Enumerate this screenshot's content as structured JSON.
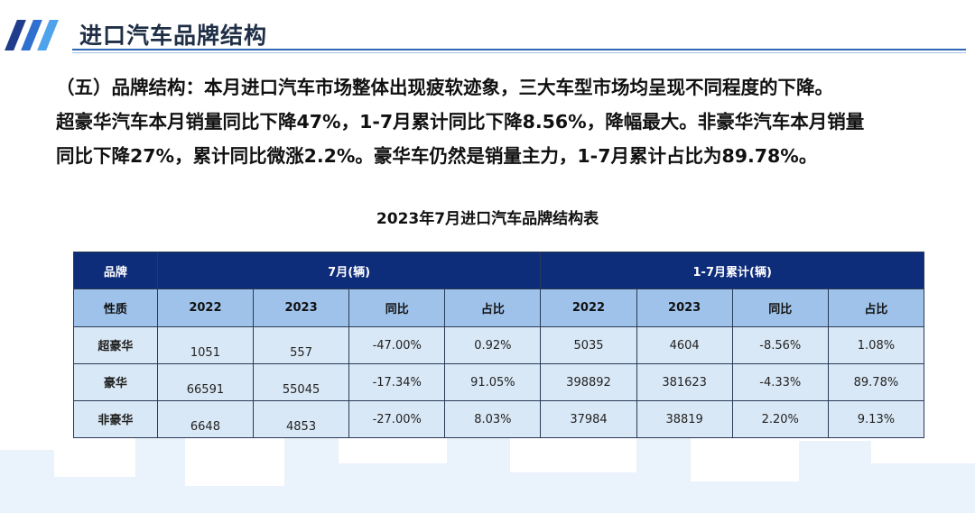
{
  "header": {
    "title": "进口汽车品牌结构",
    "stripe_colors": [
      "#1f3d8a",
      "#2f6fd0",
      "#4fa3ea"
    ]
  },
  "paragraph": {
    "line1": "（五）品牌结构：本月进口汽车市场整体出现疲软迹象，三大车型市场均呈现不同程度的下降。",
    "line2": "超豪华汽车本月销量同比下降47%，1-7月累计同比下降8.56%，降幅最大。非豪华汽车本月销量",
    "line3": "同比下降27%，累计同比微涨2.2%。豪华车仍然是销量主力，1-7月累计占比为89.78%。"
  },
  "table": {
    "title": "2023年7月进口汽车品牌结构表",
    "header1": {
      "brand": "品牌",
      "month": "7月(辆)",
      "cumulative": "1-7月累计(辆)"
    },
    "header2": {
      "nature": "性质",
      "cols": [
        "2022",
        "2023",
        "同比",
        "占比",
        "2022",
        "2023",
        "同比",
        "占比"
      ]
    },
    "rows": [
      {
        "label": "超豪华",
        "cells": [
          "1051",
          "557",
          "-47.00%",
          "0.92%",
          "5035",
          "4604",
          "-8.56%",
          "1.08%"
        ]
      },
      {
        "label": "豪华",
        "cells": [
          "66591",
          "55045",
          "-17.34%",
          "91.05%",
          "398892",
          "381623",
          "-4.33%",
          "89.78%"
        ]
      },
      {
        "label": "非豪华",
        "cells": [
          "6648",
          "4853",
          "-27.00%",
          "8.03%",
          "37984",
          "38819",
          "2.20%",
          "9.13%"
        ]
      }
    ],
    "colors": {
      "header_dark": "#0d2c7a",
      "header_light": "#9ec2ea",
      "row_bg": "#d9e8f6"
    }
  }
}
